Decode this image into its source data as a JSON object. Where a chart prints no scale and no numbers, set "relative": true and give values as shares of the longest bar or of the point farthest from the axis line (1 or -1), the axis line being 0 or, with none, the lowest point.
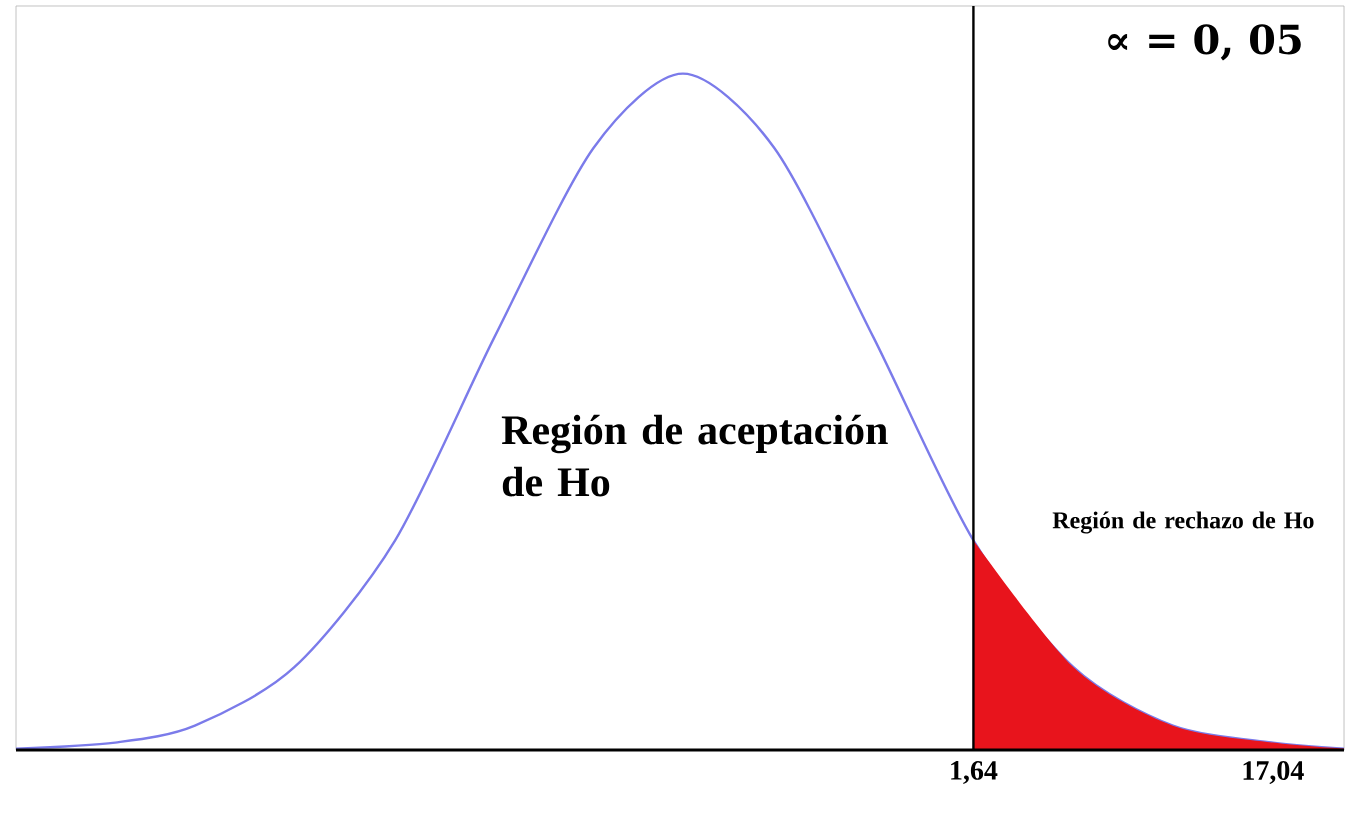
{
  "chart_data": {
    "type": "line",
    "relative": true,
    "x": [
      -47.6,
      -42.5,
      -38.4,
      -33.3,
      -28.1,
      -23.0,
      -17.9,
      -13.3,
      -8.6,
      -3.5,
      1.64,
      6.8,
      11.9,
      17.04,
      20.7
    ],
    "series": [
      {
        "color": "#7b7bea",
        "values": [
          0.002,
          0.011,
          0.036,
          0.122,
          0.31,
          0.61,
          0.89,
          1,
          0.89,
          0.61,
          0.31,
          0.122,
          0.036,
          0.011,
          0.002
        ]
      },
      {
        "type": "area",
        "color": "#e8141c",
        "x": [
          1.64,
          6.8,
          11.9,
          17.04,
          20.7
        ],
        "values": [
          0.31,
          0.122,
          0.036,
          0.011,
          0.002
        ]
      }
    ],
    "xlim": [
      -47.6,
      20.7
    ],
    "xticks": [
      {
        "value": 1.64,
        "label": "1,64"
      },
      {
        "value": 17.04,
        "label": "17,04"
      }
    ],
    "ref_lines": [
      {
        "axis": "x",
        "value": 1.64,
        "color": "#000000"
      }
    ],
    "annotations": [
      "Región de aceptación de Ho",
      "Región de rechazo de Ho",
      "∝ = 0, 05"
    ]
  }
}
